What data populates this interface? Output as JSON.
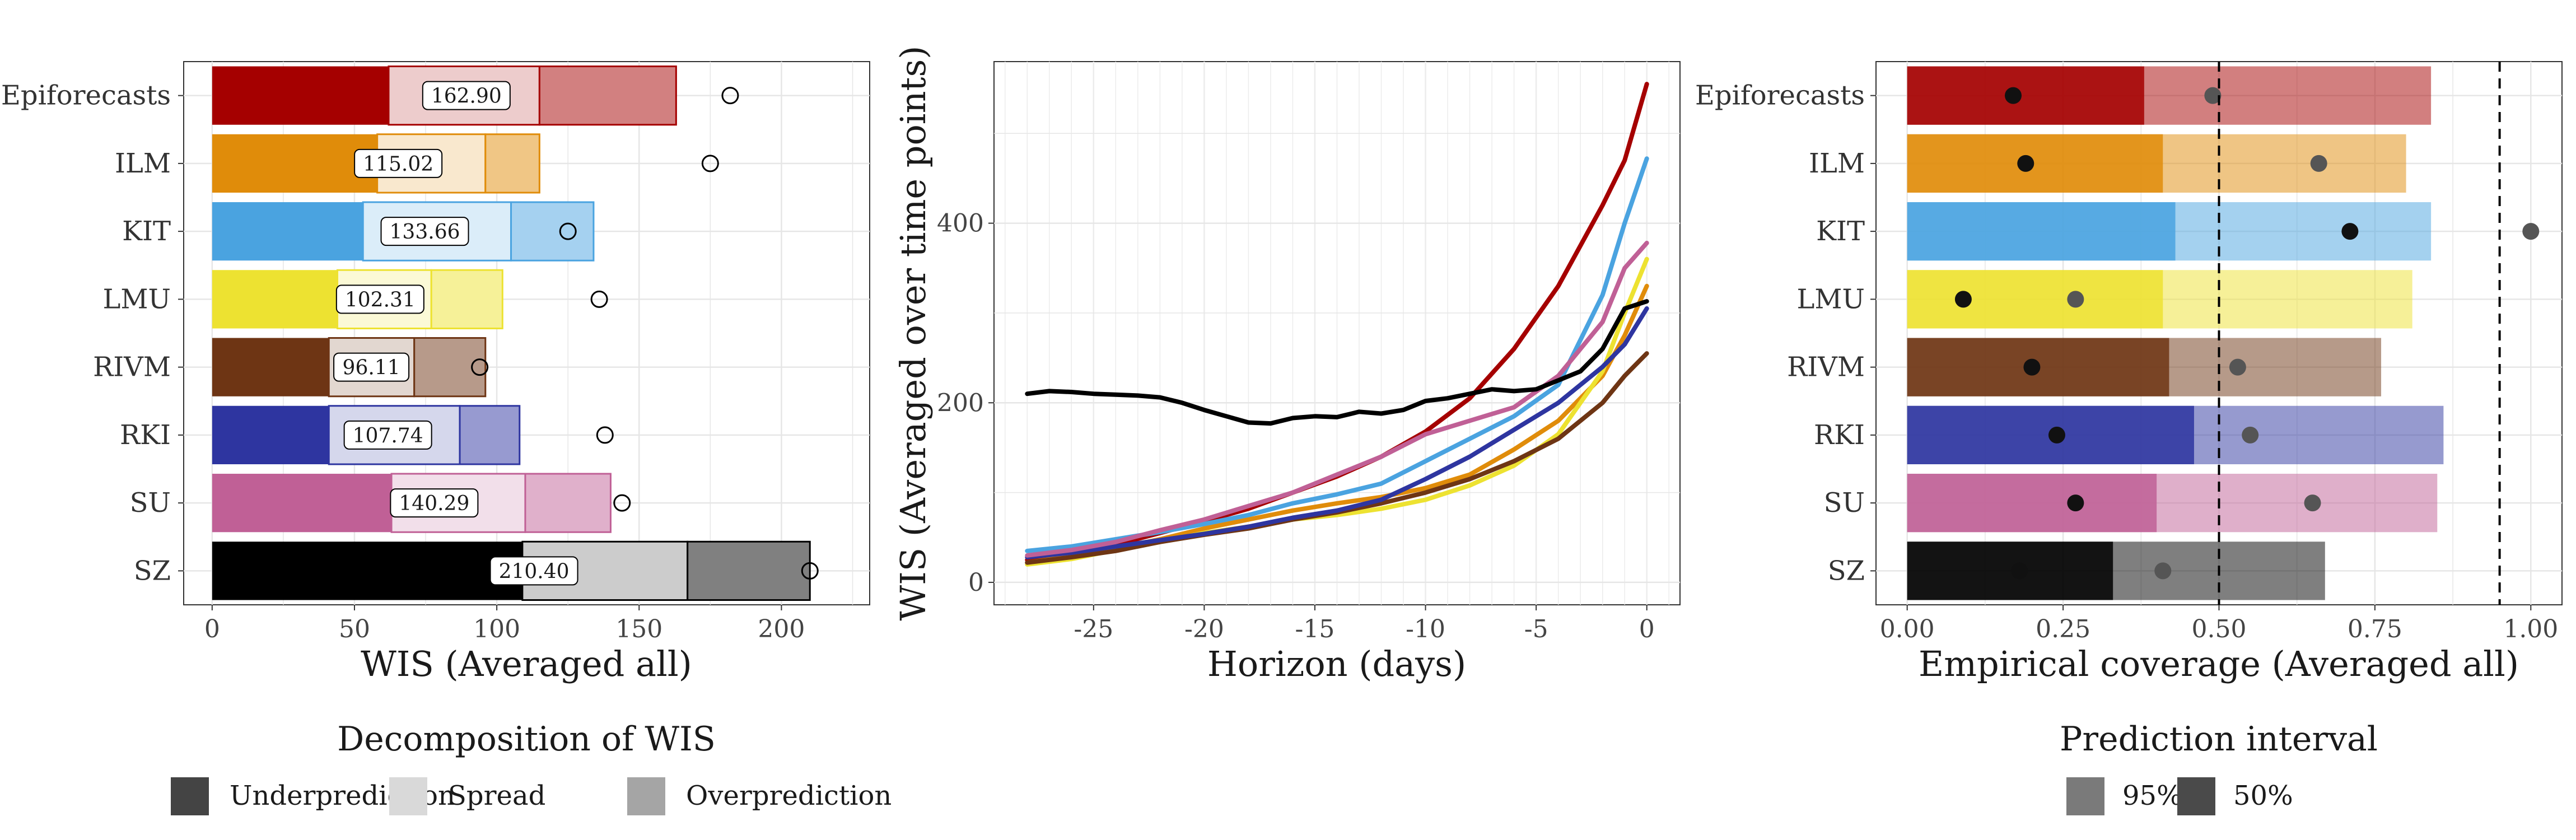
{
  "models": [
    "Epiforecasts",
    "ILM",
    "KIT",
    "LMU",
    "RIVM",
    "RKI",
    "SU",
    "SZ"
  ],
  "model_colors": {
    "Epiforecasts": "#a50000",
    "ILM": "#e08c0a",
    "KIT": "#4aa3e0",
    "LMU": "#ede231",
    "RIVM": "#6e3514",
    "RKI": "#2e35a0",
    "SU": "#c06096",
    "SZ": "#000000"
  },
  "chart_data": [
    {
      "type": "bar",
      "subtype": "stacked-horizontal",
      "title": "",
      "xlabel": "WIS (Averaged all)",
      "ylabel": "",
      "categories": [
        "Epiforecasts",
        "ILM",
        "KIT",
        "LMU",
        "RIVM",
        "RKI",
        "SU",
        "SZ"
      ],
      "series": [
        {
          "name": "Underprediction",
          "values": [
            62,
            58,
            53,
            44,
            41,
            41,
            63,
            109
          ]
        },
        {
          "name": "Spread",
          "values": [
            53,
            38,
            52,
            33,
            30,
            46,
            47,
            58
          ]
        },
        {
          "name": "Overprediction",
          "values": [
            48,
            19,
            29,
            25,
            25,
            21,
            30,
            43
          ]
        }
      ],
      "totals": [
        "162.90",
        "115.02",
        "133.66",
        "102.31",
        "96.11",
        "107.74",
        "140.29",
        "210.40"
      ],
      "total_values": [
        162.9,
        115.02,
        133.66,
        102.31,
        96.11,
        107.74,
        140.29,
        210.4
      ],
      "circle_markers": [
        182,
        175,
        125,
        136,
        94,
        138,
        144,
        210
      ],
      "xlim": [
        -10,
        231
      ],
      "xticks": [
        "0",
        "50",
        "100",
        "150",
        "200"
      ],
      "grid": true
    },
    {
      "type": "line",
      "title": "",
      "xlabel": "Horizon (days)",
      "ylabel": "WIS (Averaged over time points)",
      "xlim": [
        -29.5,
        1.5
      ],
      "ylim": [
        -25,
        580
      ],
      "xticks": [
        "-25",
        "-20",
        "-15",
        "-10",
        "-5",
        "0"
      ],
      "yticks": [
        "0",
        "200",
        "400"
      ],
      "grid": true,
      "series": [
        {
          "model": "Epiforecasts",
          "x": [
            -28,
            -26,
            -24,
            -22,
            -20,
            -18,
            -16,
            -14,
            -12,
            -10,
            -8,
            -6,
            -4,
            -2,
            -1,
            0
          ],
          "y": [
            25,
            32,
            42,
            55,
            68,
            82,
            100,
            118,
            140,
            168,
            205,
            260,
            330,
            420,
            470,
            555
          ]
        },
        {
          "model": "ILM",
          "x": [
            -28,
            -26,
            -24,
            -22,
            -20,
            -18,
            -16,
            -14,
            -12,
            -10,
            -8,
            -6,
            -4,
            -2,
            -1,
            0
          ],
          "y": [
            22,
            29,
            38,
            48,
            60,
            70,
            80,
            88,
            95,
            105,
            120,
            148,
            180,
            230,
            275,
            330
          ]
        },
        {
          "model": "KIT",
          "x": [
            -28,
            -26,
            -24,
            -22,
            -20,
            -18,
            -16,
            -14,
            -12,
            -10,
            -8,
            -6,
            -4,
            -2,
            -1,
            0
          ],
          "y": [
            35,
            40,
            48,
            56,
            65,
            75,
            88,
            98,
            110,
            135,
            160,
            185,
            220,
            320,
            400,
            472
          ]
        },
        {
          "model": "LMU",
          "x": [
            -28,
            -26,
            -24,
            -22,
            -20,
            -18,
            -16,
            -14,
            -12,
            -10,
            -8,
            -6,
            -4,
            -2,
            -1,
            0
          ],
          "y": [
            20,
            26,
            36,
            45,
            55,
            62,
            70,
            75,
            82,
            92,
            108,
            130,
            165,
            235,
            300,
            360
          ]
        },
        {
          "model": "RIVM",
          "x": [
            -28,
            -26,
            -24,
            -22,
            -20,
            -18,
            -16,
            -14,
            -12,
            -10,
            -8,
            -6,
            -4,
            -2,
            -1,
            0
          ],
          "y": [
            22,
            28,
            35,
            45,
            53,
            60,
            70,
            78,
            88,
            100,
            115,
            135,
            160,
            200,
            230,
            255
          ]
        },
        {
          "model": "RKI",
          "x": [
            -28,
            -26,
            -24,
            -22,
            -20,
            -18,
            -16,
            -14,
            -12,
            -10,
            -8,
            -6,
            -4,
            -2,
            -1,
            0
          ],
          "y": [
            28,
            33,
            40,
            47,
            54,
            62,
            72,
            80,
            92,
            115,
            140,
            170,
            200,
            240,
            265,
            305
          ]
        },
        {
          "model": "SU",
          "x": [
            -28,
            -26,
            -24,
            -22,
            -20,
            -18,
            -16,
            -14,
            -12,
            -10,
            -8,
            -6,
            -4,
            -2,
            -1,
            0
          ],
          "y": [
            30,
            36,
            45,
            58,
            70,
            85,
            100,
            120,
            140,
            165,
            180,
            195,
            230,
            290,
            350,
            378
          ]
        },
        {
          "model": "SZ",
          "x": [
            -28,
            -27,
            -26,
            -25,
            -24,
            -23,
            -22,
            -21,
            -20,
            -19,
            -18,
            -17,
            -16,
            -15,
            -14,
            -13,
            -12,
            -11,
            -10,
            -9,
            -8,
            -7,
            -6,
            -5,
            -4,
            -3,
            -2,
            -1,
            0
          ],
          "y": [
            210,
            213,
            212,
            210,
            209,
            208,
            206,
            200,
            192,
            185,
            178,
            177,
            183,
            185,
            184,
            190,
            188,
            192,
            202,
            205,
            210,
            215,
            213,
            215,
            225,
            235,
            260,
            305,
            313
          ]
        }
      ]
    },
    {
      "type": "bar",
      "subtype": "horizontal-coverage",
      "title": "",
      "xlabel": "Empirical coverage (Averaged all)",
      "ylabel": "",
      "categories": [
        "Epiforecasts",
        "ILM",
        "KIT",
        "LMU",
        "RIVM",
        "RKI",
        "SU",
        "SZ"
      ],
      "series": [
        {
          "name": "95%",
          "values": [
            0.84,
            0.8,
            0.84,
            0.81,
            0.76,
            0.86,
            0.85,
            0.67
          ]
        },
        {
          "name": "50%",
          "values": [
            0.38,
            0.41,
            0.43,
            0.41,
            0.42,
            0.46,
            0.4,
            0.33
          ]
        }
      ],
      "points_50": [
        0.17,
        0.19,
        0.71,
        0.09,
        0.2,
        0.24,
        0.27,
        0.18
      ],
      "points_95": [
        0.49,
        0.66,
        1.0,
        0.27,
        0.53,
        0.55,
        0.65,
        0.41
      ],
      "reference_lines": [
        0.5,
        0.95
      ],
      "xlim": [
        -0.05,
        1.05
      ],
      "xticks": [
        "0.00",
        "0.25",
        "0.50",
        "0.75",
        "1.00"
      ],
      "grid": true
    }
  ],
  "legend_wis": {
    "title": "Decomposition of WIS",
    "items": [
      {
        "label": "Underprediction",
        "color": "#444444"
      },
      {
        "label": "Spread",
        "color": "#d9d9d9"
      },
      {
        "label": "Overprediction",
        "color": "#a5a5a5"
      }
    ]
  },
  "legend_pi": {
    "title": "Prediction interval",
    "items": [
      {
        "label": "95%",
        "color": "#7a7a7a"
      },
      {
        "label": "50%",
        "color": "#4a4a4a"
      }
    ]
  }
}
